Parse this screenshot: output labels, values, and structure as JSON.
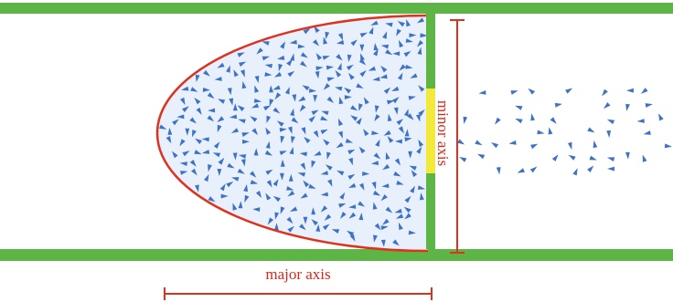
{
  "labels": {
    "major_axis": "major axis",
    "minor_axis": "minor axis"
  }
}
